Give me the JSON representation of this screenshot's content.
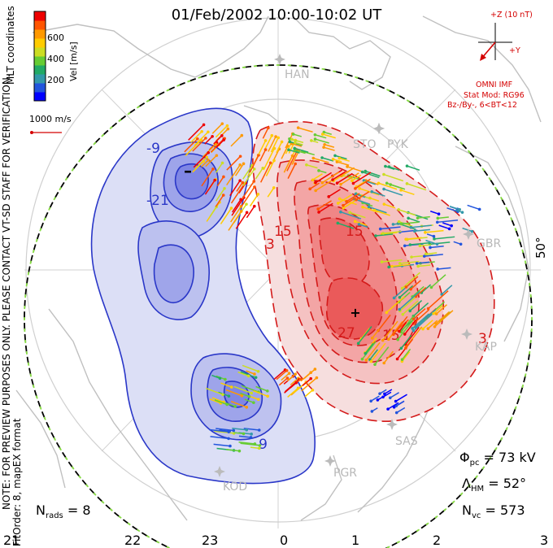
{
  "title": "01/Feb/2002 10:00-10:02 UT",
  "colorbar": {
    "unit_label": "Vel [m/s]",
    "ticks": [
      "600",
      "400",
      "200"
    ],
    "colors": [
      "#0000ff",
      "#2255dd",
      "#3399aa",
      "#22aa66",
      "#66cc33",
      "#ccdd22",
      "#ffcc00",
      "#ff9900",
      "#ff5500",
      "#ee0000"
    ]
  },
  "coord_label": "MLT coordinates",
  "scale_vector": {
    "label": "1000 m/s",
    "color": "#d40000"
  },
  "imf": {
    "z_label": "+Z (10 nT)",
    "y_label": "+Y",
    "omni": "OMNI IMF",
    "model": "Stat Mod: RG96",
    "condition": "Bz-/By-, 6<BT<12",
    "color": "#d40000"
  },
  "disclaimer": {
    "line1": "NOTE: FOR PREVIEW PURPOSES ONLY. PLEASE CONTACT VT-SD STAFF FOR VERIFICATION.",
    "line2": "FitOrder: 8, mapEX format"
  },
  "latitude_label": "50°",
  "contour_labels": [
    "-9",
    "-21",
    "-9",
    "3",
    "15",
    "15",
    "27",
    "15",
    "3"
  ],
  "stations": [
    "HAN",
    "STO",
    "PYK",
    "GBR",
    "KAP",
    "SAS",
    "PGR",
    "KOD"
  ],
  "mlt_labels": [
    "21",
    "22",
    "23",
    "0",
    "1",
    "2",
    "3"
  ],
  "stats": {
    "potential": {
      "sym": "Φ",
      "sub": "pc",
      "value": "= 73 kV"
    },
    "hm_boundary": {
      "sym": "Λ",
      "sub": "HM",
      "value": "= 52°"
    },
    "nvc": {
      "sym": "N",
      "sub": "vc",
      "value": "= 573"
    },
    "nrads": {
      "sym": "N",
      "sub": "rads",
      "value": "= 8"
    }
  },
  "colors": {
    "dusk_cell": "#2a37c8",
    "dawn_cell": "#d41a1a",
    "boundary_dash_a": "#000000",
    "boundary_dash_b": "#88dd44",
    "coast": "#c4c4c4",
    "grid": "#c8c8c8"
  }
}
